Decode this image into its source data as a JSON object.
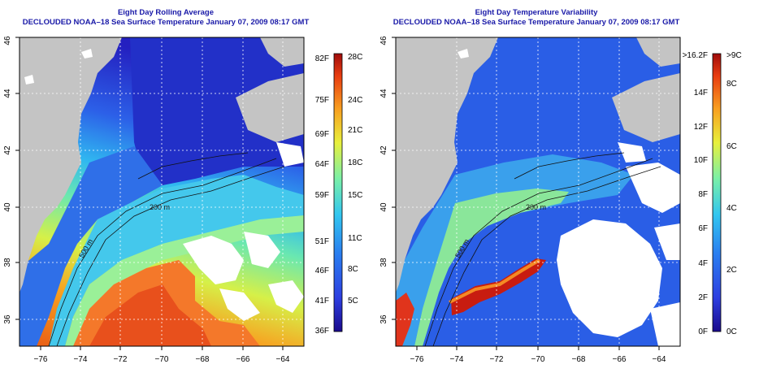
{
  "panels": [
    {
      "title": "Eight Day Rolling Average",
      "subtitle": "DECLOUDED NOAA–18 Sea Surface Temperature January 07, 2009 08:17 GMT",
      "isobaths": [
        "500 m",
        "200 m"
      ],
      "colorbar": {
        "left_labels": [
          "82F",
          "75F",
          "69F",
          "64F",
          "59F",
          "51F",
          "46F",
          "41F",
          "36F"
        ],
        "right_labels": [
          "28C",
          "24C",
          "21C",
          "18C",
          "15C",
          "11C",
          "8C",
          "5C"
        ]
      }
    },
    {
      "title": "Eight Day Temperature Variability",
      "subtitle": "DECLOUDED NOAA–18 Sea Surface Temperature January 07, 2009 08:17 GMT",
      "isobaths": [
        "500 m",
        "200 m"
      ],
      "colorbar": {
        "left_labels": [
          ">16.2F",
          "14F",
          "12F",
          "10F",
          "8F",
          "6F",
          "4F",
          "2F",
          "0F"
        ],
        "right_labels": [
          ">9C",
          "8C",
          "6C",
          "4C",
          "2C",
          "0C"
        ]
      }
    }
  ],
  "axes": {
    "x_ticks": [
      "−76",
      "−74",
      "−72",
      "−70",
      "−68",
      "−66",
      "−64"
    ],
    "y_ticks": [
      "36",
      "38",
      "40",
      "42",
      "44",
      "46"
    ]
  },
  "colors": {
    "title": "#1a1aa8",
    "land": "#c4c4c4",
    "cloud": "#ffffff",
    "palette": [
      "#1a0a8c",
      "#2d3ee0",
      "#2a7ef0",
      "#32c6f0",
      "#7af0a8",
      "#e8f03c",
      "#f8a020",
      "#e83c10",
      "#a00c0c"
    ]
  }
}
